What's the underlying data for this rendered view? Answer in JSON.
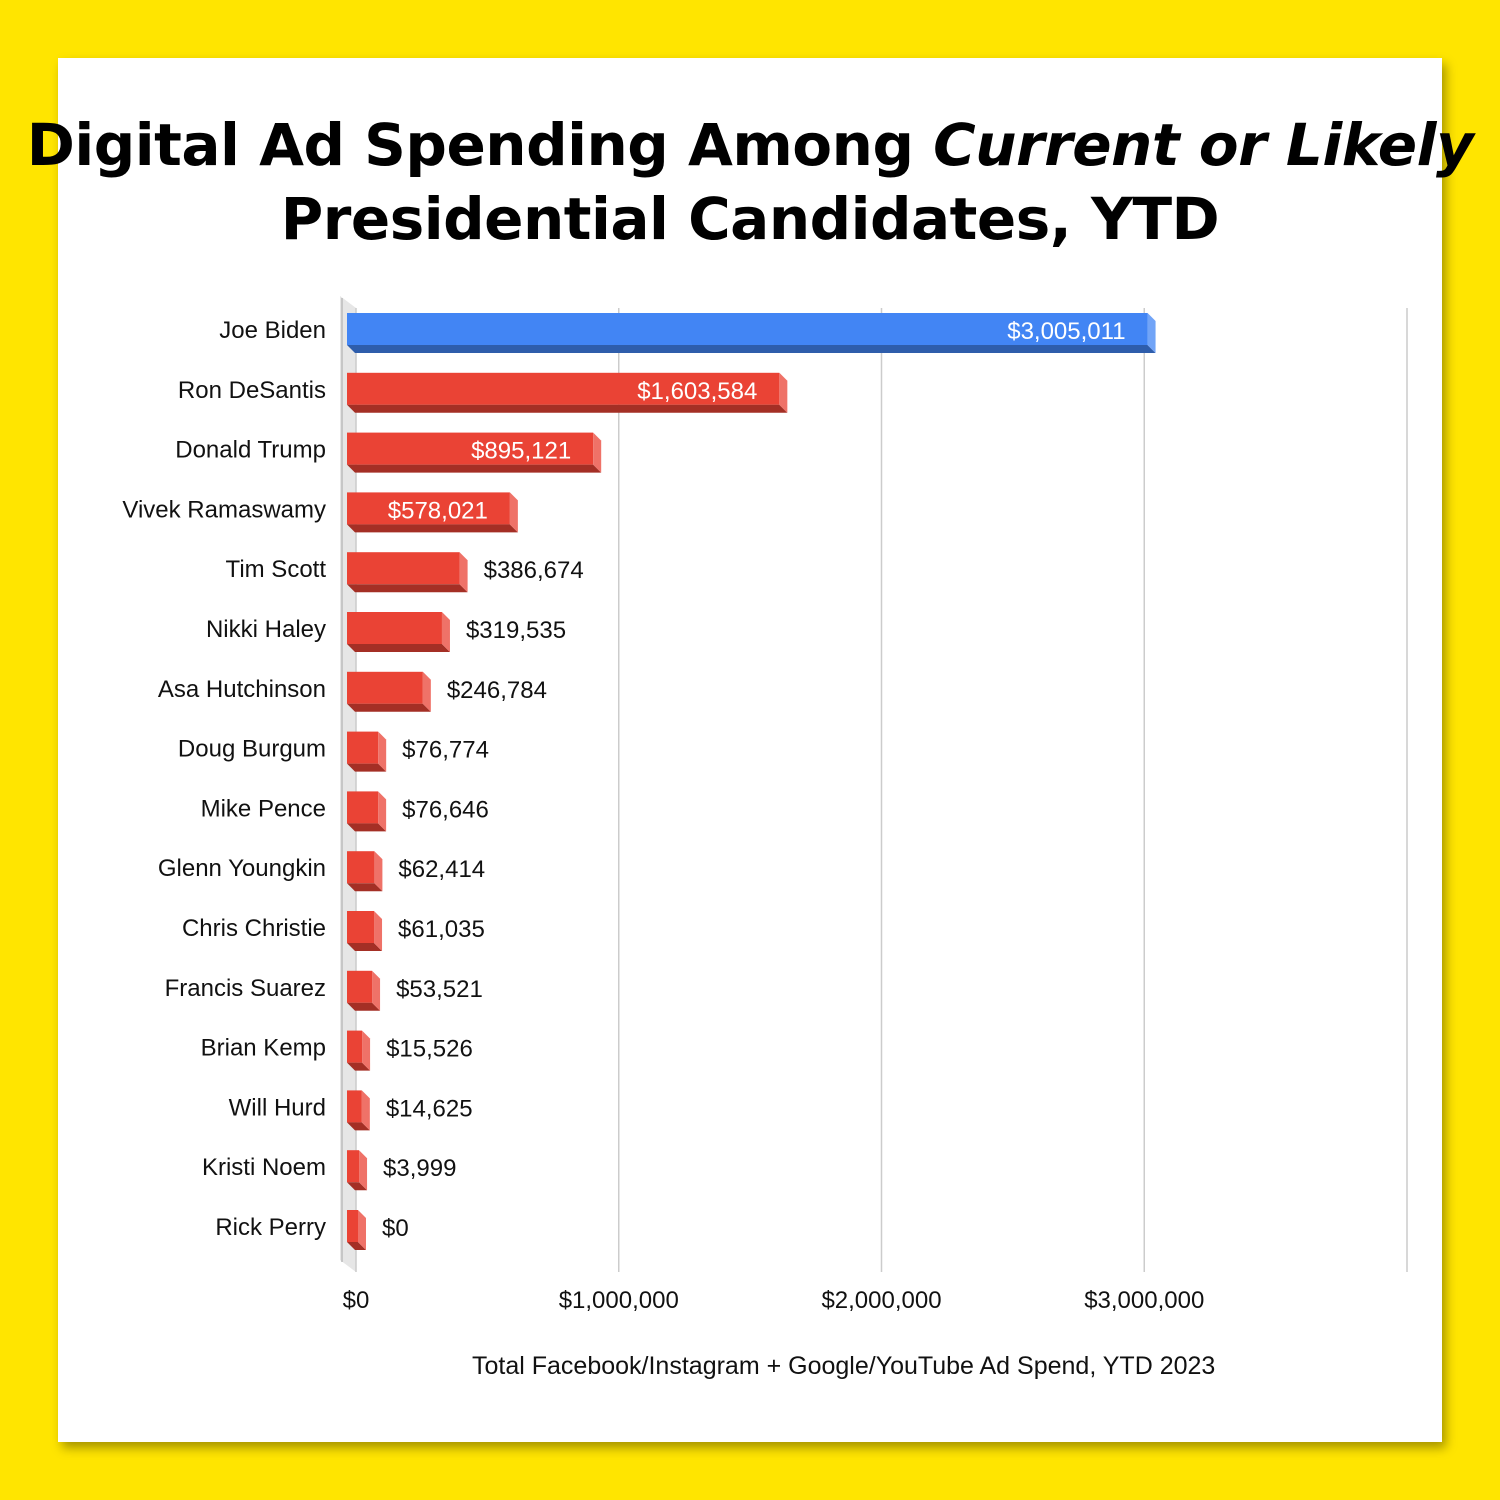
{
  "title": {
    "part1": "Digital Ad Spending Among ",
    "part2": "Current or Likely",
    "part3": "Presidential Candidates, YTD"
  },
  "chart_data": {
    "type": "bar",
    "orientation": "horizontal",
    "style": "3d",
    "categories": [
      "Joe Biden",
      "Ron DeSantis",
      "Donald Trump",
      "Vivek Ramaswamy",
      "Tim Scott",
      "Nikki Haley",
      "Asa Hutchinson",
      "Doug Burgum",
      "Mike Pence",
      "Glenn Youngkin",
      "Chris Christie",
      "Francis Suarez",
      "Brian Kemp",
      "Will Hurd",
      "Kristi Noem",
      "Rick Perry"
    ],
    "values": [
      3005011,
      1603584,
      895121,
      578021,
      386674,
      319535,
      246784,
      76774,
      76646,
      62414,
      61035,
      53521,
      15526,
      14625,
      3999,
      0
    ],
    "data_labels": [
      "$3,005,011",
      "$1,603,584",
      "$895,121",
      "$578,021",
      "$386,674",
      "$319,535",
      "$246,784",
      "$76,774",
      "$76,646",
      "$62,414",
      "$61,035",
      "$53,521",
      "$15,526",
      "$14,625",
      "$3,999",
      "$0"
    ],
    "bar_colors": [
      "#4285F4",
      "#EA4335",
      "#EA4335",
      "#EA4335",
      "#EA4335",
      "#EA4335",
      "#EA4335",
      "#EA4335",
      "#EA4335",
      "#EA4335",
      "#EA4335",
      "#EA4335",
      "#EA4335",
      "#EA4335",
      "#EA4335",
      "#EA4335"
    ],
    "xticks": [
      0,
      1000000,
      2000000,
      3000000
    ],
    "xtick_labels": [
      "$0",
      "$1,000,000",
      "$2,000,000",
      "$3,000,000"
    ],
    "xlim": [
      0,
      4000000
    ],
    "xlabel": "Total Facebook/Instagram + Google/YouTube Ad Spend, YTD 2023",
    "ylabel": "",
    "grid": true,
    "legend": "none"
  },
  "colors": {
    "background": "#FFE500",
    "card": "#FFFFFF",
    "democrat": "#4285F4",
    "republican": "#EA4335"
  }
}
